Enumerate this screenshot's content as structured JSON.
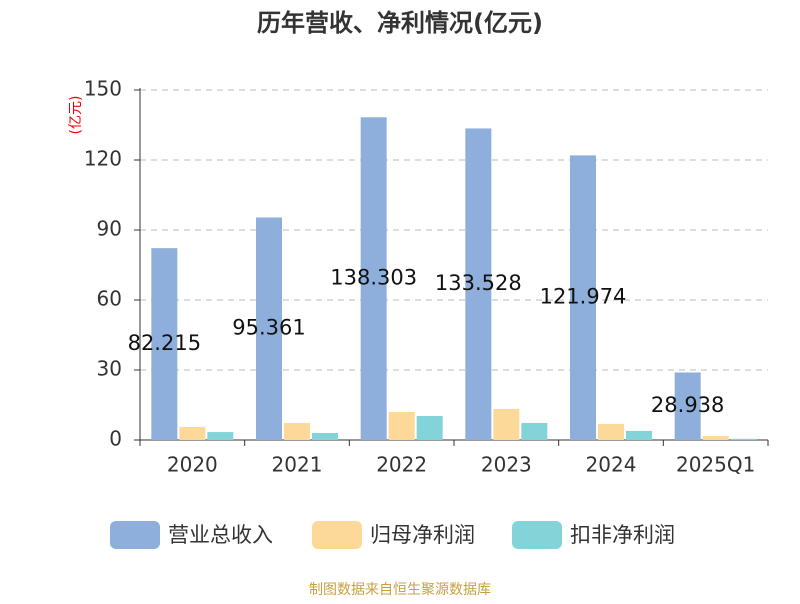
{
  "chart_data": {
    "type": "bar",
    "title": "历年营收、净利情况(亿元)",
    "y_axis_label": "(亿元)",
    "categories": [
      "2020",
      "2021",
      "2022",
      "2023",
      "2024",
      "2025Q1"
    ],
    "series": [
      {
        "name": "营业总收入",
        "color": "#8eaedb",
        "values": [
          82.215,
          95.361,
          138.303,
          133.528,
          121.974,
          28.938
        ],
        "show_labels": true
      },
      {
        "name": "归母净利润",
        "color": "#fdd999",
        "values": [
          5.6,
          7.3,
          12.0,
          13.3,
          6.9,
          1.7
        ]
      },
      {
        "name": "扣非净利润",
        "color": "#83d4d9",
        "values": [
          3.4,
          3.0,
          10.3,
          7.3,
          3.9,
          0.5
        ]
      }
    ],
    "ylim": [
      0,
      150
    ],
    "yticks": [
      0,
      30,
      60,
      90,
      120,
      150
    ],
    "grid": true,
    "source": "制图数据来自恒生聚源数据库"
  }
}
